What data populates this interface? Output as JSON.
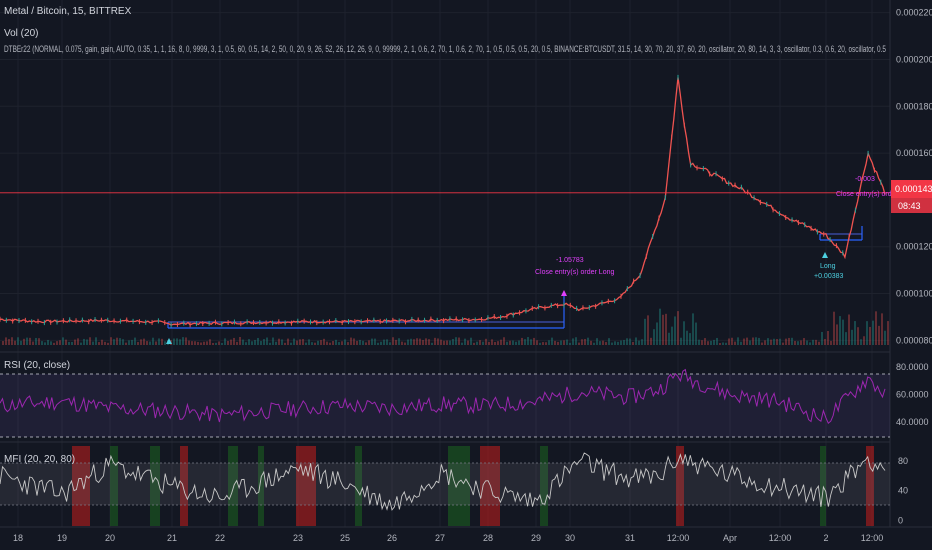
{
  "header": {
    "symbol": "Metal / Bitcoin, 15, BITTREX",
    "volume_label": "Vol (20)",
    "strategy_label": "DTBEr22 (NORMAL, 0.075, gain, gain, AUTO, 0.35, 1, 1, 16, 8, 0, 9999, 3, 1, 0.5, 60, 0.5, 14, 2, 50, 0, 20, 9, 26, 52, 26, 12, 26, 9, 0, 99999, 2, 1, 0.6, 2, 70, 1, 0.6, 2, 70, 1, 0.5, 0.5, 0.5, 20, 0.5, BINANCE:BTCUSDT, 31.5, 14, 30, 70, 20, 37, 60, 20, oscillator, 20, 80, 14, 3, 3, oscillator, 0.3, 0.6, 20, oscillator, 0.5"
  },
  "price_axis": {
    "ticks": [
      "0.00022000",
      "0.00020000",
      "0.00018000",
      "0.00016000",
      "0.00012000",
      "0.00010000",
      "0.00008000"
    ],
    "current_price": "0.00014304",
    "countdown": "08:43"
  },
  "time_axis": [
    "18",
    "19",
    "20",
    "21",
    "22",
    "23",
    "25",
    "26",
    "27",
    "28",
    "29",
    "30",
    "31",
    "12:00",
    "Apr",
    "12:00",
    "2",
    "12:00"
  ],
  "annotations": {
    "trade1_value": "-1.05783",
    "trade1_label": "Close entry(s) order Long",
    "trade2_label": "Long",
    "trade2_value": "+0.00383",
    "trade3_value": "-0.003",
    "trade3_label": "Close entry(s) order Long"
  },
  "rsi": {
    "label": "RSI (20, close)",
    "ticks": [
      "80.0000",
      "60.0000",
      "40.0000"
    ]
  },
  "mfi": {
    "label": "MFI (20, 20, 80)",
    "ticks": [
      "80",
      "40",
      "0"
    ]
  },
  "colors": {
    "background": "#131722",
    "up": "#26a69a",
    "down": "#ef5350",
    "position_line": "#2962ff",
    "rsi_line": "#9c27b0",
    "price_marker": "#f23645"
  },
  "chart_data": [
    {
      "type": "line",
      "title": "Metal / Bitcoin, 15, BITTREX",
      "x": [
        "18",
        "19",
        "20",
        "21",
        "22",
        "23",
        "24",
        "25",
        "26",
        "27",
        "28",
        "29",
        "29.5",
        "30",
        "30.5",
        "31",
        "31.3",
        "31.5",
        "31.7",
        "Apr",
        "Apr 12:00",
        "2",
        "2 6:00",
        "2 12:00",
        "2 15:00"
      ],
      "series": [
        {
          "values": [
            8.9e-05,
            8.8e-05,
            8.85e-05,
            8.78e-05,
            8.7e-05,
            8.75e-05,
            8.8e-05,
            8.8e-05,
            8.85e-05,
            8.9e-05,
            9e-05,
            9.4e-05,
            9.55e-05,
            9.3e-05,
            9.8e-05,
            0.000108,
            0.00014,
            0.000192,
            0.000156,
            0.000145,
            0.000132,
            0.000125,
            0.000116,
            0.00016,
            0.000143
          ]
        }
      ],
      "ylim": [
        7.8e-05,
        0.000222
      ],
      "grid": true
    },
    {
      "type": "line",
      "title": "RSI (20, close)",
      "x": [
        "18",
        "19",
        "20",
        "21",
        "22",
        "23",
        "24",
        "25",
        "26",
        "27",
        "28",
        "29",
        "30",
        "31",
        "31.5",
        "Apr",
        "Apr 12:00",
        "2",
        "2 12:00",
        "2 15:00"
      ],
      "series": [
        {
          "values": [
            52,
            55,
            50,
            48,
            45,
            50,
            52,
            50,
            53,
            52,
            55,
            62,
            58,
            64,
            75,
            60,
            55,
            42,
            72,
            60
          ]
        }
      ],
      "ylim": [
        27,
        88
      ],
      "bands": [
        30,
        70
      ]
    },
    {
      "type": "line",
      "title": "MFI (20, 20, 80)",
      "x": [
        "18",
        "19",
        "20",
        "21",
        "22",
        "23",
        "24",
        "25",
        "26",
        "27",
        "28",
        "29",
        "30",
        "31",
        "31.5",
        "Apr",
        "Apr 12:00",
        "2",
        "2 12:00",
        "2 15:00"
      ],
      "series": [
        {
          "values": [
            60,
            35,
            75,
            45,
            30,
            70,
            50,
            20,
            65,
            40,
            25,
            80,
            55,
            60,
            85,
            60,
            45,
            30,
            85,
            70
          ]
        }
      ],
      "ylim": [
        -5,
        100
      ],
      "bands": [
        20,
        80
      ]
    }
  ]
}
